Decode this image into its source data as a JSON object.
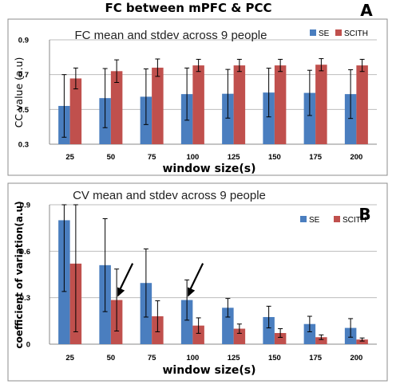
{
  "figure": {
    "title": "FC between mPFC & PCC",
    "colors": {
      "se": "#4a7ebf",
      "scith": "#c0504d"
    }
  },
  "chart_data": [
    {
      "type": "bar",
      "panel_label": "A",
      "title": "FC mean and stdev across 9 people",
      "xlabel": "window size(s)",
      "ylabel": "CC value (a.u)",
      "categories": [
        "25",
        "50",
        "75",
        "100",
        "125",
        "150",
        "175",
        "200"
      ],
      "ylim": [
        0.3,
        0.9
      ],
      "yticks": [
        0.3,
        0.5,
        0.7,
        0.9
      ],
      "ytick_labels": [
        "0.3",
        "0.5",
        "0.7",
        "0.9"
      ],
      "grid": true,
      "legend_position": "top-right",
      "series": [
        {
          "name": "SE",
          "values": [
            0.52,
            0.565,
            0.573,
            0.588,
            0.59,
            0.597,
            0.595,
            0.588
          ],
          "errors": [
            0.18,
            0.17,
            0.16,
            0.15,
            0.14,
            0.14,
            0.13,
            0.14
          ]
        },
        {
          "name": "SCITH",
          "values": [
            0.678,
            0.72,
            0.74,
            0.753,
            0.753,
            0.753,
            0.757,
            0.753
          ],
          "errors": [
            0.06,
            0.065,
            0.05,
            0.035,
            0.035,
            0.035,
            0.035,
            0.035
          ]
        }
      ]
    },
    {
      "type": "bar",
      "panel_label": "B",
      "title": "CV mean and stdev across 9 people",
      "xlabel": "window size(s)",
      "ylabel": "coefficient of variation(a.u)",
      "categories": [
        "25",
        "50",
        "75",
        "100",
        "125",
        "150",
        "175",
        "200"
      ],
      "ylim": [
        0,
        0.9
      ],
      "yticks": [
        0,
        0.3,
        0.6,
        0.9
      ],
      "ytick_labels": [
        "0",
        "0.3",
        "0.6",
        "0.9"
      ],
      "grid": true,
      "legend_position": "top-right",
      "annotations": [
        {
          "type": "arrow",
          "points_to": {
            "series": "SCITH",
            "category": "50"
          }
        },
        {
          "type": "arrow",
          "points_to": {
            "series": "SE",
            "category": "100"
          }
        }
      ],
      "series": [
        {
          "name": "SE",
          "values": [
            0.8,
            0.51,
            0.395,
            0.285,
            0.235,
            0.175,
            0.13,
            0.105
          ],
          "errors": [
            0.46,
            0.3,
            0.22,
            0.13,
            0.06,
            0.07,
            0.05,
            0.06
          ]
        },
        {
          "name": "SCITH",
          "values": [
            0.52,
            0.285,
            0.18,
            0.12,
            0.1,
            0.072,
            0.045,
            0.03
          ],
          "errors": [
            0.44,
            0.2,
            0.1,
            0.05,
            0.03,
            0.028,
            0.015,
            0.01
          ]
        }
      ]
    }
  ]
}
